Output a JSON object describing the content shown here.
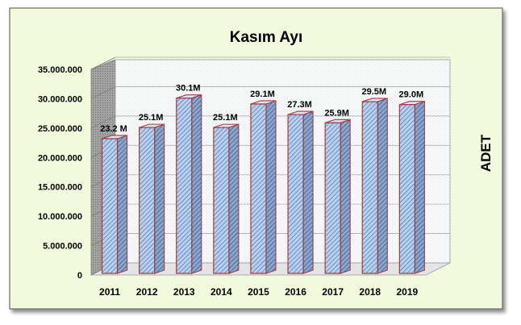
{
  "chart_data": {
    "type": "bar",
    "title": "Kasım Ayı",
    "xlabel": "",
    "ylabel": "ADET",
    "categories": [
      "2011",
      "2012",
      "2013",
      "2014",
      "2015",
      "2016",
      "2017",
      "2018",
      "2019"
    ],
    "values": [
      23200000,
      25100000,
      30100000,
      25100000,
      29100000,
      27300000,
      25900000,
      29500000,
      29000000
    ],
    "data_labels": [
      "23.2 M",
      "25.1M",
      "30.1M",
      "25.1M",
      "29.1M",
      "27.3M",
      "25.9M",
      "29.5M",
      "29.0M"
    ],
    "yticks": [
      "0",
      "5.000.000",
      "10.000.000",
      "15.000.000",
      "20.000.000",
      "25.000.000",
      "30.000.000",
      "35.000.000"
    ],
    "ylim": [
      0,
      35000000
    ],
    "grid": true,
    "legend": "none",
    "style": "3d-column",
    "colors": {
      "page_background": "#f3f9dd",
      "plot_background": "#ffffff",
      "bar_fill": "#b9d1ee",
      "bar_hatch": "#3d6aa8",
      "bar_edge": "#a5393d",
      "wall_side": "#9c9c9c",
      "grid": "#a9a9a9"
    }
  }
}
